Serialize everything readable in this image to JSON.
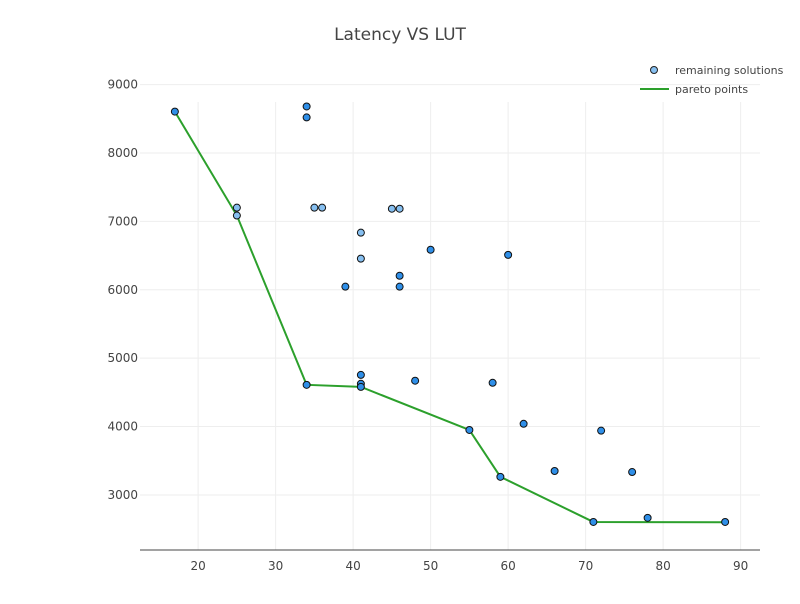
{
  "chart_data": {
    "type": "scatter",
    "title": "Latency VS LUT",
    "xlabel": "",
    "ylabel": "",
    "xlim": [
      12.5,
      92.5
    ],
    "ylim": [
      2195,
      9330
    ],
    "grid": true,
    "legend_position": "top-right",
    "x_ticks": [
      20,
      30,
      40,
      50,
      60,
      70,
      80,
      90
    ],
    "y_ticks": [
      3000,
      4000,
      5000,
      6000,
      7000,
      8000,
      9000
    ],
    "series": [
      {
        "name": "remaining solutions",
        "mode": "markers",
        "color": "#2f8fe8",
        "light_color": "#86bff0",
        "points": [
          {
            "x": 17,
            "y": 8605,
            "shade": "dark"
          },
          {
            "x": 25,
            "y": 7200,
            "shade": "light"
          },
          {
            "x": 25,
            "y": 7085,
            "shade": "light"
          },
          {
            "x": 34,
            "y": 8680,
            "shade": "dark"
          },
          {
            "x": 34,
            "y": 8520,
            "shade": "dark"
          },
          {
            "x": 35,
            "y": 7200,
            "shade": "light"
          },
          {
            "x": 36,
            "y": 7200,
            "shade": "light"
          },
          {
            "x": 41,
            "y": 6835,
            "shade": "light"
          },
          {
            "x": 41,
            "y": 6455,
            "shade": "light"
          },
          {
            "x": 39,
            "y": 6045,
            "shade": "dark"
          },
          {
            "x": 45,
            "y": 7185,
            "shade": "light"
          },
          {
            "x": 46,
            "y": 7185,
            "shade": "light"
          },
          {
            "x": 46,
            "y": 6205,
            "shade": "dark"
          },
          {
            "x": 46,
            "y": 6045,
            "shade": "dark"
          },
          {
            "x": 50,
            "y": 6585,
            "shade": "dark"
          },
          {
            "x": 60,
            "y": 6510,
            "shade": "dark"
          },
          {
            "x": 41,
            "y": 4755,
            "shade": "dark"
          },
          {
            "x": 41,
            "y": 4625,
            "shade": "dark"
          },
          {
            "x": 41,
            "y": 4580,
            "shade": "dark"
          },
          {
            "x": 34,
            "y": 4610,
            "shade": "dark"
          },
          {
            "x": 48,
            "y": 4670,
            "shade": "dark"
          },
          {
            "x": 58,
            "y": 4640,
            "shade": "dark"
          },
          {
            "x": 62,
            "y": 4040,
            "shade": "dark"
          },
          {
            "x": 55,
            "y": 3950,
            "shade": "dark"
          },
          {
            "x": 72,
            "y": 3940,
            "shade": "dark"
          },
          {
            "x": 59,
            "y": 3265,
            "shade": "dark"
          },
          {
            "x": 66,
            "y": 3350,
            "shade": "dark"
          },
          {
            "x": 76,
            "y": 3335,
            "shade": "dark"
          },
          {
            "x": 71,
            "y": 2605,
            "shade": "dark"
          },
          {
            "x": 78,
            "y": 2665,
            "shade": "dark"
          },
          {
            "x": 88,
            "y": 2605,
            "shade": "dark"
          }
        ]
      },
      {
        "name": "pareto points",
        "mode": "lines",
        "color": "#2ca02c",
        "points": [
          {
            "x": 17,
            "y": 8605
          },
          {
            "x": 25,
            "y": 7085
          },
          {
            "x": 34,
            "y": 4610
          },
          {
            "x": 41,
            "y": 4580
          },
          {
            "x": 55,
            "y": 3950
          },
          {
            "x": 59,
            "y": 3265
          },
          {
            "x": 71,
            "y": 2605
          },
          {
            "x": 88,
            "y": 2600
          }
        ]
      }
    ]
  }
}
